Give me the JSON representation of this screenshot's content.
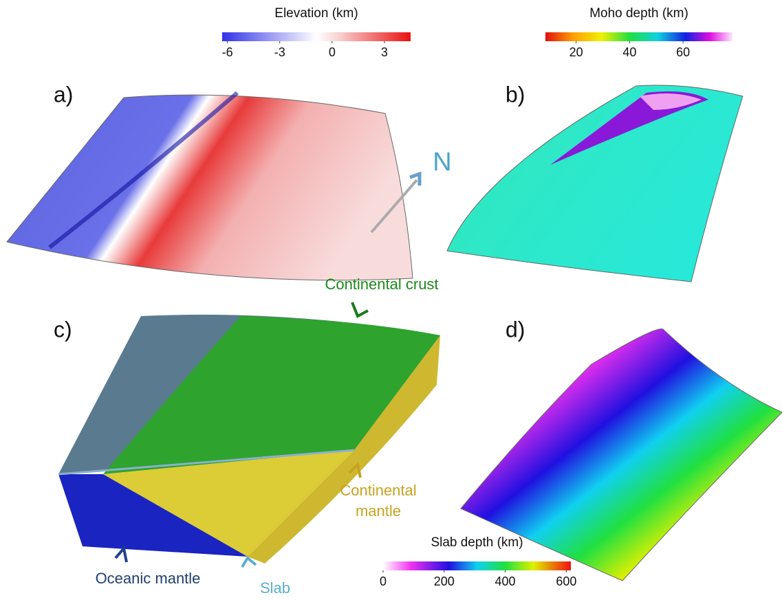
{
  "colorbars": [
    {
      "title": "Elevation (km)",
      "lim": [
        -6.3,
        4.5
      ],
      "ticks": [
        -6,
        -3,
        0,
        3
      ]
    },
    {
      "title": "Moho depth (km)",
      "lim": [
        8.5,
        78.5
      ],
      "ticks": [
        20,
        40,
        60
      ]
    },
    {
      "title": "Slab depth (km)",
      "lim": [
        0,
        615
      ],
      "ticks": [
        0,
        200,
        400,
        600
      ]
    }
  ],
  "panel_labels": [
    "a)",
    "b)",
    "c)",
    "d)"
  ],
  "north_label": "N",
  "annotations": {
    "continental_crust": "Continental crust",
    "continental_mantle": [
      "Continental",
      "mantle"
    ],
    "oceanic_mantle": "Oceanic mantle",
    "slab": "Slab"
  }
}
